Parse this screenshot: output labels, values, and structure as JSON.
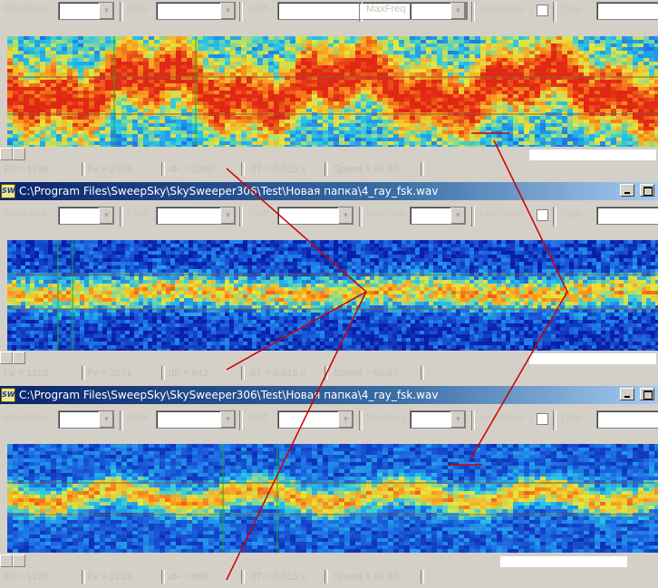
{
  "toolbar": {
    "blocksize_label": "BlockSize",
    "filter_label": "Filter",
    "shift_label": "Shift",
    "maxfreq_label": "MaxFreq",
    "lineshow_label": "LineShow",
    "type_label": "Type"
  },
  "windows": [
    {
      "title": "",
      "status": {
        "fd": "Fd = 1298",
        "fv": "Fv = 2358",
        "df": "dF = 1060",
        "dt": "dT = 0.015 s",
        "speed": "Speed = 66.67"
      }
    },
    {
      "title": "C:\\Program Files\\SweepSky\\SkySweeper306\\Test\\Новая папка\\4_ray_fsk.wav",
      "status": {
        "fd": "Fd = 1228",
        "fv": "Fv = 2071",
        "df": "dF = 843",
        "dt": "dT = 0.015 s",
        "speed": "Speed = 66.67"
      }
    },
    {
      "title": "C:\\Program Files\\SweepSky\\SkySweeper306\\Test\\Новая папка\\4_ray_fsk.wav",
      "status": {
        "fd": "Fd = 1265",
        "fv": "Fv = 2133",
        "df": "dF = 868",
        "dt": "dT = 0.015 s",
        "speed": "Speed = 66.67"
      }
    }
  ],
  "app_icon_text": "SW",
  "colors": {
    "annotation": "#cc0000",
    "marker_line": "#22aa22",
    "title_gradient_start": "#0a246a",
    "title_gradient_end": "#a6caf0"
  }
}
